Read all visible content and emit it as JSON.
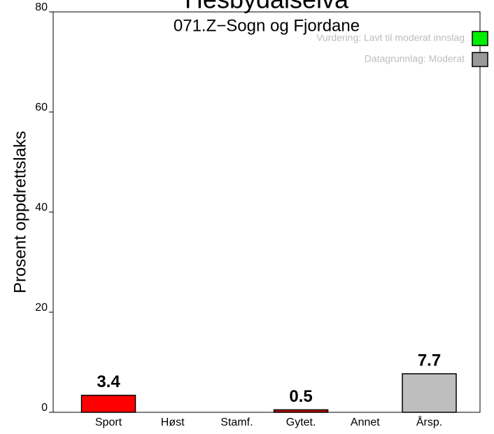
{
  "chart_data": {
    "type": "bar",
    "title": "Hesbydalselva",
    "subtitle": "071.Z−Sogn og Fjordane",
    "ylabel": "Prosent oppdrettslaks",
    "categories": [
      "Sport",
      "Høst",
      "Stamf.",
      "Gytet.",
      "Annet",
      "Årsp."
    ],
    "values": [
      3.4,
      0,
      0,
      0.5,
      0,
      7.7
    ],
    "colors": [
      "#ff0000",
      "#ff0000",
      "#ff0000",
      "#cc0000",
      "#ff0000",
      "#bebebe"
    ],
    "ylim": [
      0,
      80
    ],
    "yticks": [
      0,
      20,
      40,
      60,
      80
    ],
    "legend": [
      {
        "label": "Vurdering: Lavt til moderat innslag",
        "color": "#00ee00"
      },
      {
        "label": "Datagrunnlag: Moderat",
        "color": "#999999"
      }
    ]
  }
}
